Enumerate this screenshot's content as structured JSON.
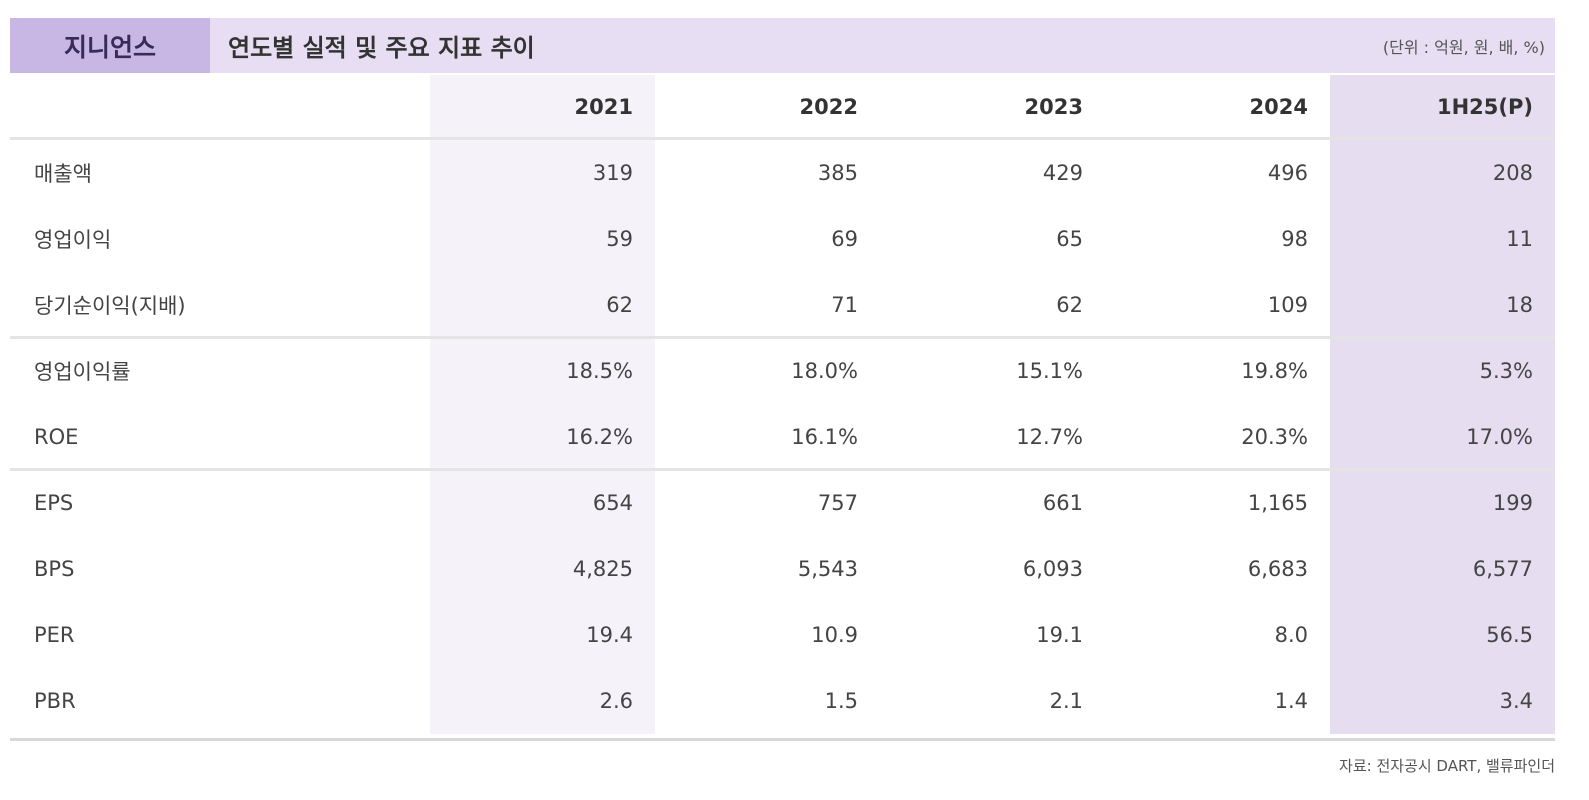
{
  "header": {
    "company": "지니언스",
    "title": "연도별 실적 및 주요 지표 추이",
    "unit": "(단위 : 억원, 원, 배, %)"
  },
  "table": {
    "columns": [
      "2021",
      "2022",
      "2023",
      "2024",
      "1H25(P)"
    ],
    "rows": [
      [
        "매출액",
        "319",
        "385",
        "429",
        "496",
        "208"
      ],
      [
        "영업이익",
        "59",
        "69",
        "65",
        "98",
        "11"
      ],
      [
        "당기순이익(지배)",
        "62",
        "71",
        "62",
        "109",
        "18"
      ],
      [
        "영업이익률",
        "18.5%",
        "18.0%",
        "15.1%",
        "19.8%",
        "5.3%"
      ],
      [
        "ROE",
        "16.2%",
        "16.1%",
        "12.7%",
        "20.3%",
        "17.0%"
      ],
      [
        "EPS",
        "654",
        "757",
        "661",
        "1,165",
        "199"
      ],
      [
        "BPS",
        "4,825",
        "5,543",
        "6,093",
        "6,683",
        "6,577"
      ],
      [
        "PER",
        "19.4",
        "10.9",
        "19.1",
        "8.0",
        "56.5"
      ],
      [
        "PBR",
        "2.6",
        "1.5",
        "2.1",
        "1.4",
        "3.4"
      ]
    ]
  },
  "footer": {
    "source": "자료: 전자공시 DART, 밸류파인더"
  }
}
